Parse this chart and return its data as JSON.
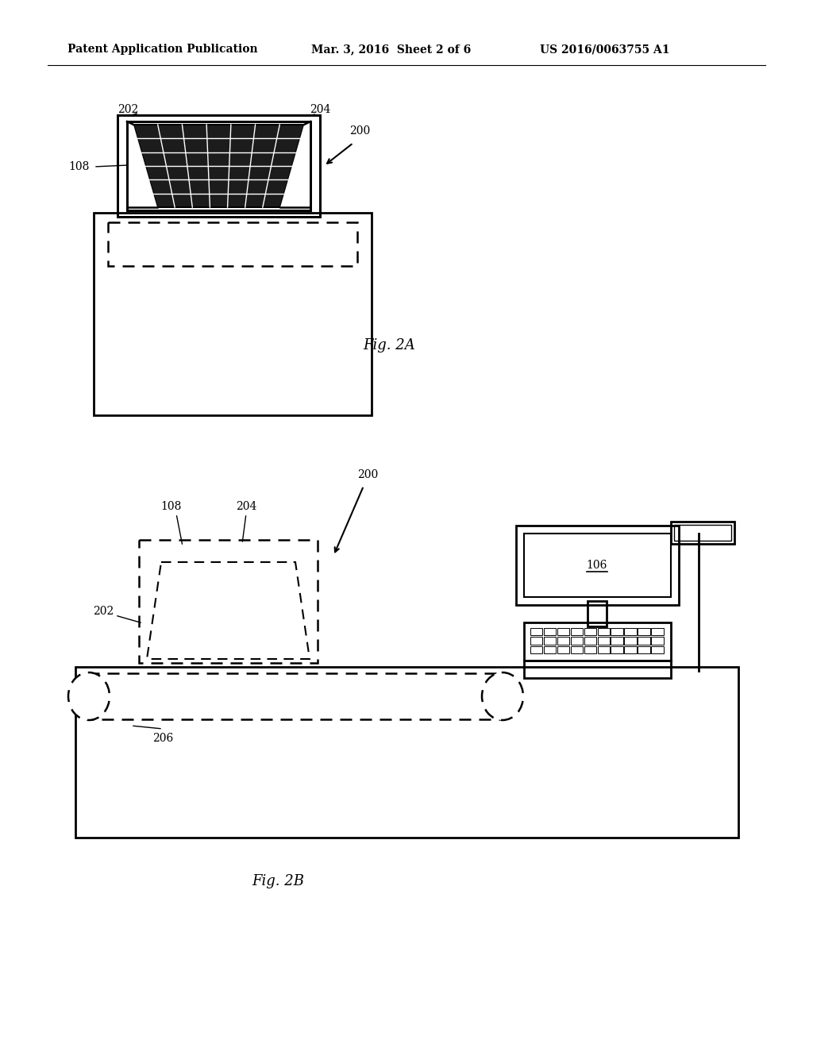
{
  "bg_color": "#ffffff",
  "line_color": "#000000",
  "header_left": "Patent Application Publication",
  "header_mid": "Mar. 3, 2016  Sheet 2 of 6",
  "header_right": "US 2016/0063755 A1",
  "fig2a_label": "Fig. 2A",
  "fig2b_label": "Fig. 2B"
}
